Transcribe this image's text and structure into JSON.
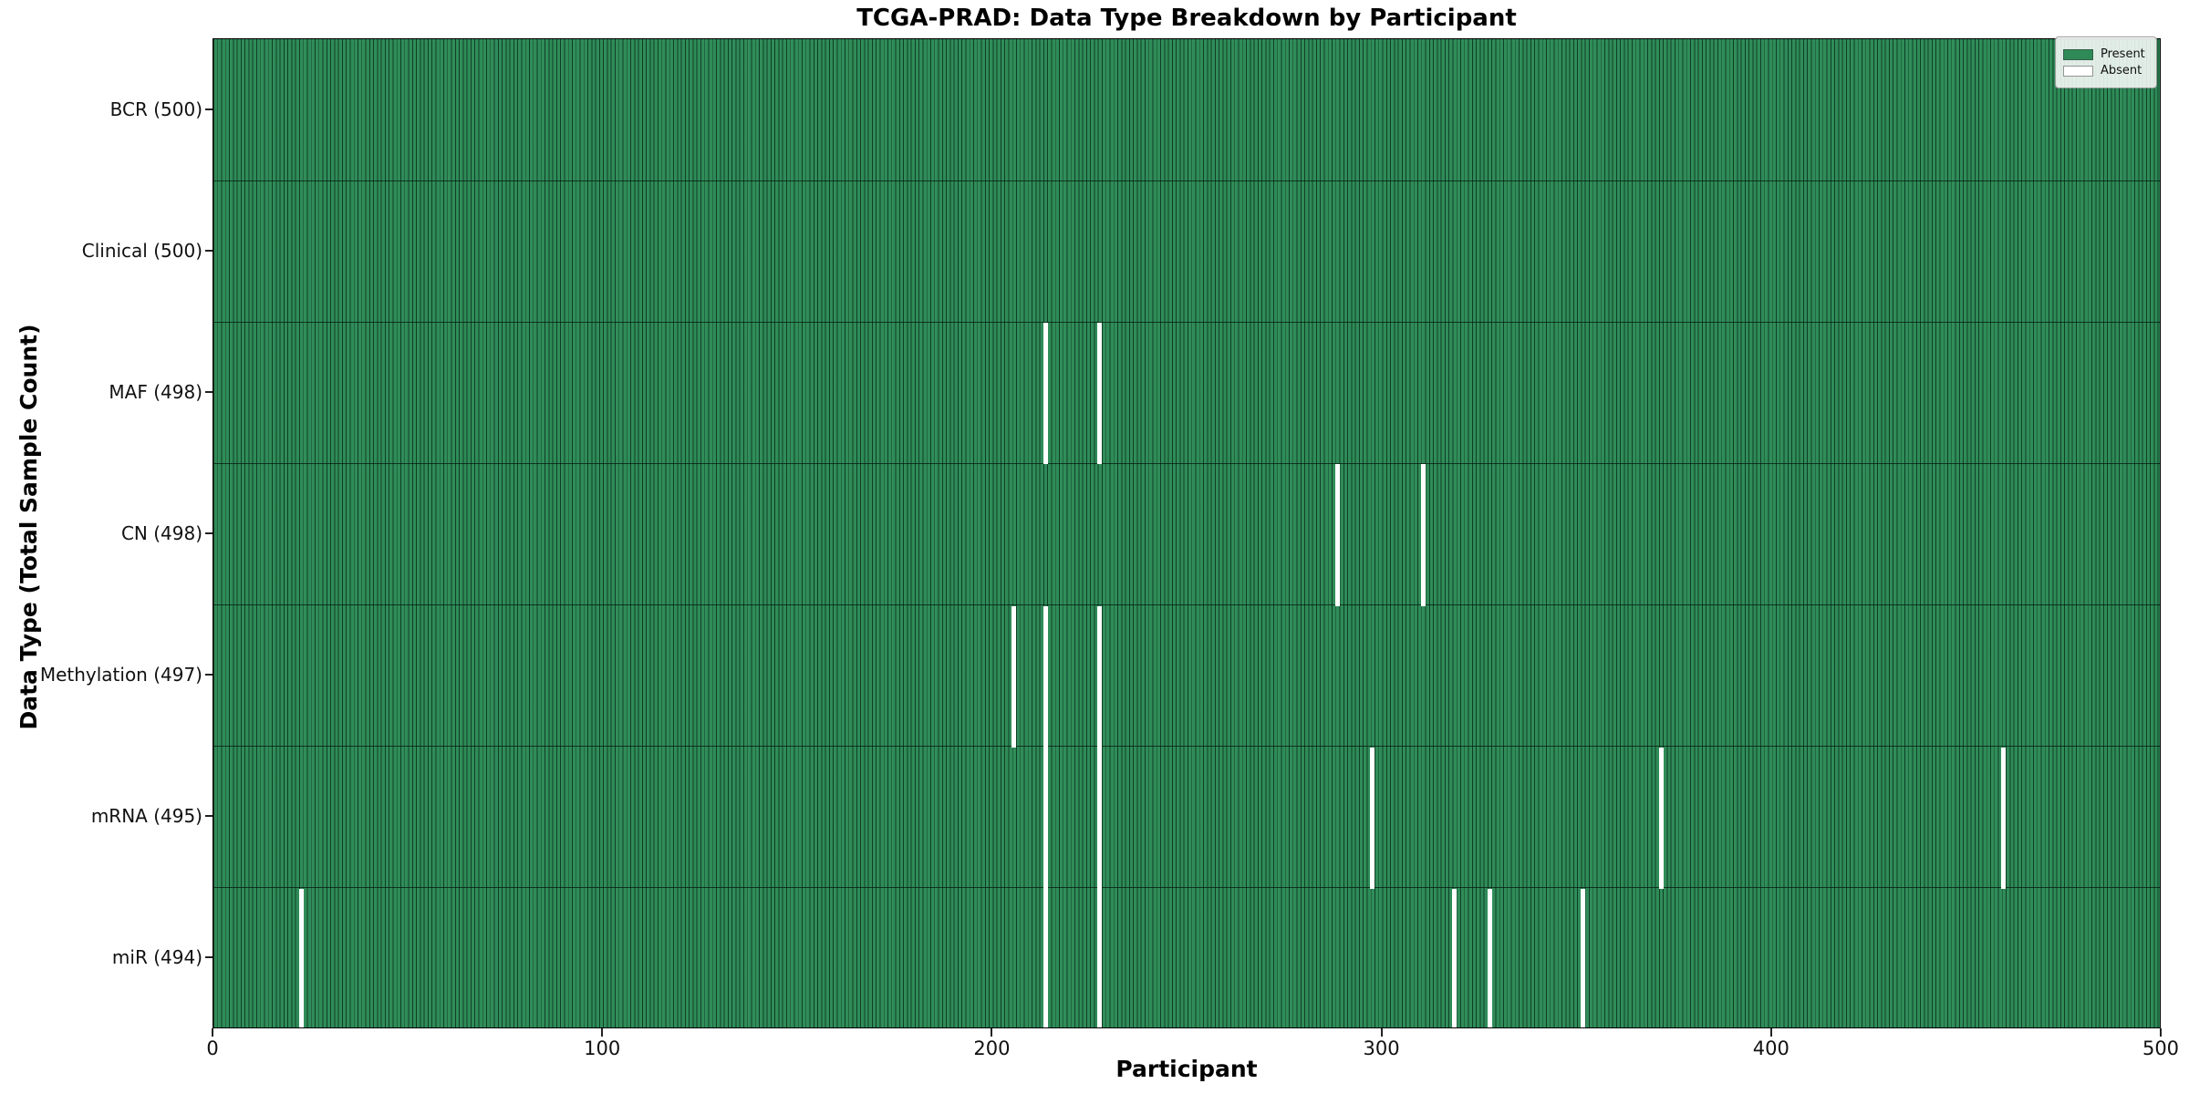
{
  "chart_data": {
    "type": "heatmap",
    "title": "TCGA-PRAD: Data Type Breakdown by Participant",
    "xlabel": "Participant",
    "ylabel": "Data Type (Total Sample Count)",
    "x_range": [
      0,
      500
    ],
    "x_ticks": [
      0,
      100,
      200,
      300,
      400,
      500
    ],
    "n_participants": 500,
    "present_color": "#2e8b57",
    "absent_color": "#ffffff",
    "grid": false,
    "legend_position": "upper right",
    "rows": [
      {
        "label": "BCR (500)",
        "data_type": "BCR",
        "present_count": 500,
        "absent_participants": []
      },
      {
        "label": "Clinical (500)",
        "data_type": "Clinical",
        "present_count": 500,
        "absent_participants": []
      },
      {
        "label": "MAF (498)",
        "data_type": "MAF",
        "present_count": 498,
        "absent_participants": [
          213,
          227
        ]
      },
      {
        "label": "CN (498)",
        "data_type": "CN",
        "present_count": 498,
        "absent_participants": [
          288,
          310
        ]
      },
      {
        "label": "Methylation (497)",
        "data_type": "Methylation",
        "present_count": 497,
        "absent_participants": [
          205,
          213,
          227
        ]
      },
      {
        "label": "mRNA (495)",
        "data_type": "mRNA",
        "present_count": 495,
        "absent_participants": [
          213,
          227,
          297,
          371,
          459
        ]
      },
      {
        "label": "miR (494)",
        "data_type": "miR",
        "present_count": 494,
        "absent_participants": [
          22,
          213,
          227,
          318,
          327,
          351
        ]
      }
    ],
    "legend_entries": [
      {
        "label": "Present",
        "color": "#2e8b57"
      },
      {
        "label": "Absent",
        "color": "#ffffff"
      }
    ]
  }
}
